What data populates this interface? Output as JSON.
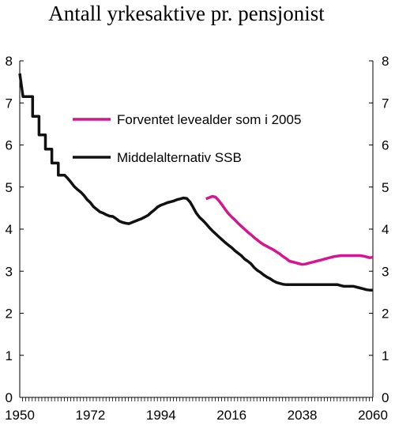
{
  "chart_data": {
    "type": "line",
    "title": "Antall yrkesaktive pr. pensjonist",
    "xlabel": "",
    "ylabel": "",
    "xlim": [
      1950,
      2060
    ],
    "ylim": [
      0,
      8
    ],
    "x_ticks": [
      "1950",
      "1972",
      "1994",
      "2016",
      "2038",
      "2060"
    ],
    "x_tick_values": [
      1950,
      1972,
      1994,
      2016,
      2038,
      2060
    ],
    "y_ticks": [
      "0",
      "1",
      "2",
      "3",
      "4",
      "5",
      "6",
      "7",
      "8"
    ],
    "y_tick_values": [
      0,
      1,
      2,
      3,
      4,
      5,
      6,
      7,
      8
    ],
    "legend_position": "top-right",
    "grid": false,
    "series": [
      {
        "name": "Forventet levealder som i 2005",
        "color": "#d6168c",
        "points": [
          [
            2008,
            4.72
          ],
          [
            2009,
            4.75
          ],
          [
            2010,
            4.78
          ],
          [
            2011,
            4.76
          ],
          [
            2012,
            4.68
          ],
          [
            2013,
            4.58
          ],
          [
            2014,
            4.47
          ],
          [
            2015,
            4.37
          ],
          [
            2016,
            4.29
          ],
          [
            2017,
            4.22
          ],
          [
            2018,
            4.14
          ],
          [
            2019,
            4.07
          ],
          [
            2020,
            4.0
          ],
          [
            2021,
            3.93
          ],
          [
            2022,
            3.87
          ],
          [
            2023,
            3.8
          ],
          [
            2024,
            3.74
          ],
          [
            2025,
            3.68
          ],
          [
            2026,
            3.63
          ],
          [
            2027,
            3.59
          ],
          [
            2028,
            3.55
          ],
          [
            2029,
            3.51
          ],
          [
            2030,
            3.46
          ],
          [
            2031,
            3.41
          ],
          [
            2032,
            3.35
          ],
          [
            2033,
            3.3
          ],
          [
            2034,
            3.24
          ],
          [
            2035,
            3.22
          ],
          [
            2036,
            3.2
          ],
          [
            2037,
            3.18
          ],
          [
            2038,
            3.16
          ],
          [
            2039,
            3.17
          ],
          [
            2040,
            3.19
          ],
          [
            2041,
            3.21
          ],
          [
            2042,
            3.23
          ],
          [
            2043,
            3.25
          ],
          [
            2044,
            3.27
          ],
          [
            2045,
            3.29
          ],
          [
            2046,
            3.31
          ],
          [
            2047,
            3.33
          ],
          [
            2048,
            3.35
          ],
          [
            2049,
            3.36
          ],
          [
            2050,
            3.37
          ],
          [
            2051,
            3.37
          ],
          [
            2052,
            3.37
          ],
          [
            2053,
            3.37
          ],
          [
            2054,
            3.37
          ],
          [
            2055,
            3.37
          ],
          [
            2056,
            3.37
          ],
          [
            2057,
            3.36
          ],
          [
            2058,
            3.34
          ],
          [
            2059,
            3.32
          ],
          [
            2060,
            3.33
          ]
        ]
      },
      {
        "name": "Middelalternativ SSB",
        "color": "#111111",
        "points": [
          [
            1950,
            7.7
          ],
          [
            1951,
            7.15
          ],
          [
            1952,
            7.15
          ],
          [
            1953,
            7.15
          ],
          [
            1954,
            7.15
          ],
          [
            1954,
            6.68
          ],
          [
            1955,
            6.68
          ],
          [
            1956,
            6.68
          ],
          [
            1956,
            6.24
          ],
          [
            1957,
            6.24
          ],
          [
            1958,
            6.24
          ],
          [
            1958,
            5.9
          ],
          [
            1959,
            5.9
          ],
          [
            1960,
            5.9
          ],
          [
            1960,
            5.57
          ],
          [
            1961,
            5.57
          ],
          [
            1962,
            5.57
          ],
          [
            1962,
            5.28
          ],
          [
            1963,
            5.28
          ],
          [
            1964,
            5.28
          ],
          [
            1965,
            5.2
          ],
          [
            1966,
            5.11
          ],
          [
            1967,
            5.01
          ],
          [
            1968,
            4.94
          ],
          [
            1969,
            4.88
          ],
          [
            1970,
            4.8
          ],
          [
            1971,
            4.7
          ],
          [
            1972,
            4.63
          ],
          [
            1973,
            4.53
          ],
          [
            1974,
            4.47
          ],
          [
            1975,
            4.41
          ],
          [
            1976,
            4.38
          ],
          [
            1977,
            4.34
          ],
          [
            1978,
            4.31
          ],
          [
            1979,
            4.3
          ],
          [
            1980,
            4.25
          ],
          [
            1981,
            4.19
          ],
          [
            1982,
            4.16
          ],
          [
            1983,
            4.14
          ],
          [
            1984,
            4.13
          ],
          [
            1985,
            4.16
          ],
          [
            1986,
            4.19
          ],
          [
            1987,
            4.22
          ],
          [
            1988,
            4.25
          ],
          [
            1989,
            4.29
          ],
          [
            1990,
            4.33
          ],
          [
            1991,
            4.4
          ],
          [
            1992,
            4.46
          ],
          [
            1993,
            4.53
          ],
          [
            1994,
            4.57
          ],
          [
            1995,
            4.6
          ],
          [
            1996,
            4.63
          ],
          [
            1997,
            4.65
          ],
          [
            1998,
            4.67
          ],
          [
            1999,
            4.7
          ],
          [
            2000,
            4.72
          ],
          [
            2001,
            4.74
          ],
          [
            2002,
            4.73
          ],
          [
            2003,
            4.65
          ],
          [
            2004,
            4.52
          ],
          [
            2005,
            4.38
          ],
          [
            2006,
            4.28
          ],
          [
            2007,
            4.21
          ],
          [
            2008,
            4.13
          ],
          [
            2009,
            4.04
          ],
          [
            2010,
            3.96
          ],
          [
            2011,
            3.89
          ],
          [
            2012,
            3.82
          ],
          [
            2013,
            3.75
          ],
          [
            2014,
            3.68
          ],
          [
            2015,
            3.62
          ],
          [
            2016,
            3.56
          ],
          [
            2017,
            3.49
          ],
          [
            2018,
            3.43
          ],
          [
            2019,
            3.37
          ],
          [
            2020,
            3.29
          ],
          [
            2021,
            3.24
          ],
          [
            2022,
            3.18
          ],
          [
            2023,
            3.09
          ],
          [
            2024,
            3.02
          ],
          [
            2025,
            2.97
          ],
          [
            2026,
            2.91
          ],
          [
            2027,
            2.86
          ],
          [
            2028,
            2.82
          ],
          [
            2029,
            2.77
          ],
          [
            2030,
            2.73
          ],
          [
            2031,
            2.71
          ],
          [
            2032,
            2.69
          ],
          [
            2033,
            2.68
          ],
          [
            2034,
            2.68
          ],
          [
            2035,
            2.68
          ],
          [
            2036,
            2.68
          ],
          [
            2037,
            2.68
          ],
          [
            2038,
            2.68
          ],
          [
            2039,
            2.68
          ],
          [
            2040,
            2.68
          ],
          [
            2041,
            2.68
          ],
          [
            2042,
            2.68
          ],
          [
            2043,
            2.68
          ],
          [
            2044,
            2.68
          ],
          [
            2045,
            2.68
          ],
          [
            2046,
            2.68
          ],
          [
            2047,
            2.68
          ],
          [
            2048,
            2.68
          ],
          [
            2049,
            2.68
          ],
          [
            2050,
            2.66
          ],
          [
            2051,
            2.64
          ],
          [
            2052,
            2.64
          ],
          [
            2053,
            2.64
          ],
          [
            2054,
            2.64
          ],
          [
            2055,
            2.62
          ],
          [
            2056,
            2.6
          ],
          [
            2057,
            2.58
          ],
          [
            2058,
            2.56
          ],
          [
            2059,
            2.55
          ],
          [
            2060,
            2.55
          ]
        ]
      }
    ]
  }
}
